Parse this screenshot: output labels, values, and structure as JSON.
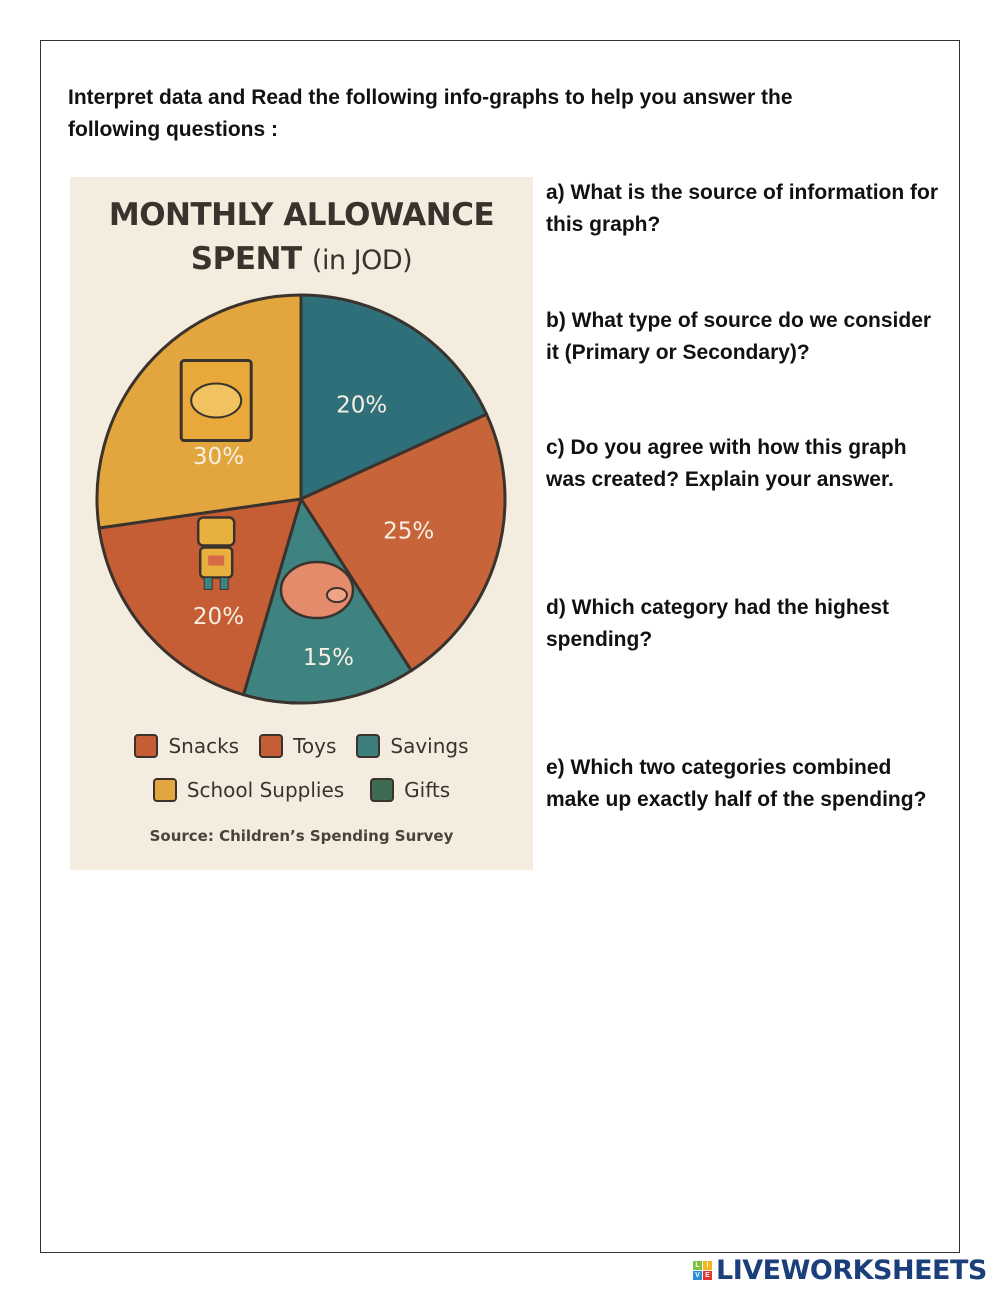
{
  "intro": "Interpret data and Read the following info-graphs to help you answer the following questions :",
  "chart_data": {
    "type": "pie",
    "title_line1": "MONTHLY ALLOWANCE",
    "title_line2_main": "SPENT",
    "title_line2_unit": "(in JOD)",
    "slices": [
      {
        "label": "20%",
        "value": 20,
        "color": "#2f6f7a",
        "icon": ""
      },
      {
        "label": "25%",
        "value": 25,
        "color": "#c8643a",
        "icon": ""
      },
      {
        "label": "15%",
        "value": 15,
        "color": "#3f8381",
        "icon": "piggy-bank-icon"
      },
      {
        "label": "20%",
        "value": 20,
        "color": "#c55d35",
        "icon": "robot-toy-icon"
      },
      {
        "label": "30%",
        "value": 30,
        "color": "#e3a63e",
        "icon": "snack-bag-icon"
      }
    ],
    "legend": [
      {
        "label": "Snacks",
        "color": "#c55d35"
      },
      {
        "label": "Toys",
        "color": "#c55d35"
      },
      {
        "label": "Savings",
        "color": "#3d7d7c"
      },
      {
        "label": "School Supplies",
        "color": "#e3a63e"
      },
      {
        "label": "Gifts",
        "color": "#3e6b52"
      }
    ],
    "source": "Source: Children’s Spending Survey",
    "background": "#f5ece0"
  },
  "questions": [
    "a) What is the source of information for this graph?",
    "b) What type of source do we consider it (Primary or Secondary)?",
    "c) Do you agree with how this graph was created? Explain your answer.",
    "d) Which category had the highest spending?",
    "e)  Which two categories combined make up exactly half of the spending?"
  ],
  "logo": {
    "text": "LIVEWORKSHEETS",
    "letters": [
      "L",
      "I",
      "V",
      "E"
    ]
  }
}
